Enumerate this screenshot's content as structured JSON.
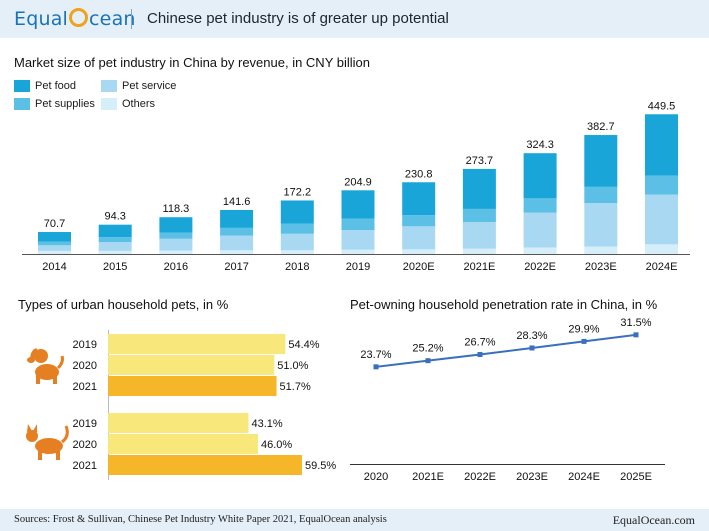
{
  "header": {
    "logo_left": "Equal",
    "logo_right": "cean",
    "title": "Chinese pet industry is of greater up potential"
  },
  "colors": {
    "pet_food": "#1aa5d8",
    "pet_supplies": "#5cc0e6",
    "pet_service": "#a9d9f2",
    "others": "#d5eefa",
    "dog_bar": "#f8e77b",
    "cat_bar": "#f6b629",
    "pet_icon": "#e67e22",
    "line": "#3a6fbf"
  },
  "icons": [
    "dog-icon",
    "cat-icon"
  ],
  "footer": {
    "source": "Sources: Frost & Sullivan, Chinese Pet Industry White Paper 2021, EqualOcean analysis",
    "brand": "EqualOcean.com"
  },
  "chart_data": [
    {
      "type": "bar",
      "stacked": true,
      "title": "Market size of pet industry in China by revenue, in CNY billion",
      "legend_position": "top-left",
      "categories": [
        "2014",
        "2015",
        "2016",
        "2017",
        "2018",
        "2019",
        "2020E",
        "2021E",
        "2022E",
        "2023E",
        "2024E"
      ],
      "totals": [
        70.7,
        94.3,
        118.3,
        141.6,
        172.2,
        204.9,
        230.8,
        273.7,
        324.3,
        382.7,
        449.5
      ],
      "series": [
        {
          "name": "Others",
          "values": [
            10,
            10,
            11,
            12,
            12,
            14,
            15,
            17,
            21,
            24,
            31
          ]
        },
        {
          "name": "Pet service",
          "values": [
            18,
            28,
            38,
            47,
            53,
            63,
            74,
            86,
            112,
            140,
            160
          ]
        },
        {
          "name": "Pet supplies",
          "values": [
            12,
            16,
            20,
            25,
            33,
            37,
            36,
            42,
            46,
            52,
            61
          ]
        },
        {
          "name": "Pet food",
          "values": [
            30.7,
            40.3,
            49.3,
            57.6,
            74.2,
            90.9,
            105.8,
            128.7,
            145.3,
            166.7,
            197.5
          ]
        }
      ],
      "legend_order": [
        "Pet food",
        "Pet service",
        "Pet supplies",
        "Others"
      ],
      "ylim": [
        0,
        460
      ],
      "grid": false
    },
    {
      "type": "bar",
      "orientation": "horizontal",
      "title": "Types of urban household pets, in %",
      "groups": [
        {
          "icon": "dog-icon",
          "categories": [
            "2019",
            "2020",
            "2021"
          ],
          "values": [
            54.4,
            51.0,
            51.7
          ]
        },
        {
          "icon": "cat-icon",
          "categories": [
            "2019",
            "2020",
            "2021"
          ],
          "values": [
            43.1,
            46.0,
            59.5
          ]
        }
      ],
      "unit": "%",
      "xlim": [
        0,
        100
      ]
    },
    {
      "type": "line",
      "title": "Pet-owning household penetration rate in China, in %",
      "x": [
        "2020",
        "2021E",
        "2022E",
        "2023E",
        "2024E",
        "2025E"
      ],
      "values": [
        23.7,
        25.2,
        26.7,
        28.3,
        29.9,
        31.5
      ],
      "unit": "%",
      "ylim": [
        0,
        50
      ],
      "grid": false
    }
  ]
}
